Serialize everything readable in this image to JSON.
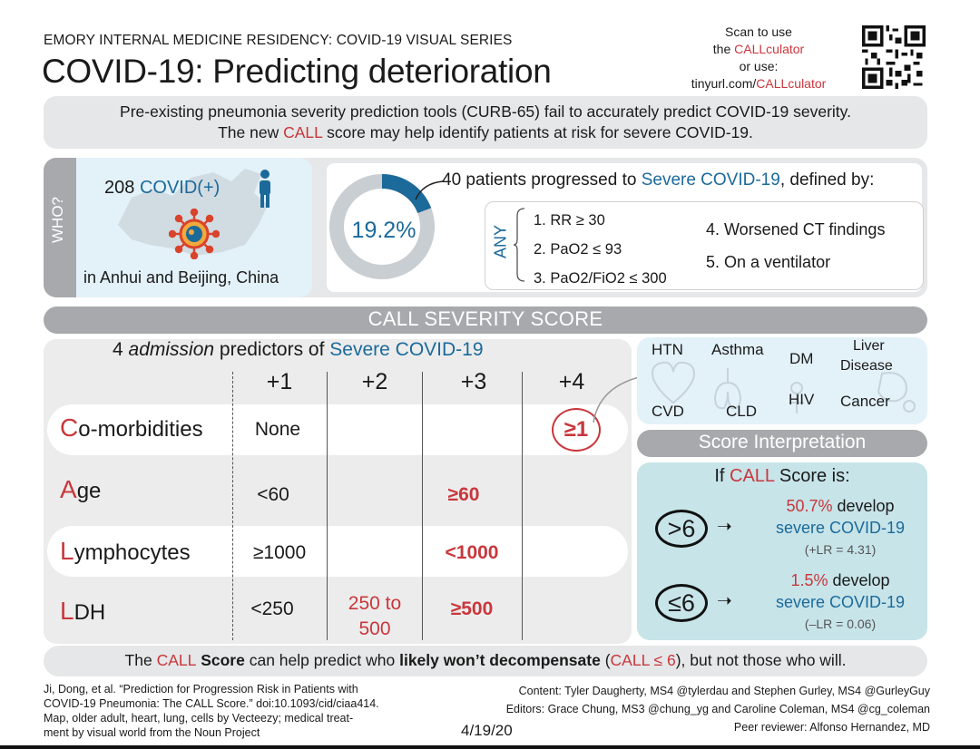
{
  "header": {
    "series": "EMORY INTERNAL MEDICINE RESIDENCY: COVID-19 VISUAL SERIES",
    "title": "COVID-19: Predicting deterioration",
    "qr_line1": "Scan to use",
    "qr_line2_prefix": "the ",
    "qr_line2_accent": "CALLculator",
    "qr_line3": "or use:",
    "qr_line4_prefix": "tinyurl.com/",
    "qr_line4_accent": "CALLculator"
  },
  "intro": {
    "line1": "Pre-existing pneumonia severity prediction tools (CURB-65) fail to accurately predict COVID-19 severity.",
    "line2_prefix": "The new ",
    "line2_accent": "CALL",
    "line2_suffix": " score may help identify patients at risk for severe COVID-19."
  },
  "who": {
    "tab_label": "WHO?",
    "count": "208",
    "count_label": "COVID(+)",
    "place": "in Anhui and Beijing, China"
  },
  "severity": {
    "percent": "19.2%",
    "percent_value": 19.2,
    "head_prefix": "40 patients progressed to ",
    "head_accent": "Severe COVID-19",
    "head_suffix": ", defined by:",
    "any_label": "ANY",
    "criteria": [
      "1. RR ≥ 30",
      "2. PaO2 ≤ 93",
      "3. PaO2/FiO2 ≤ 300",
      "4. Worsened CT findings",
      "5. On a ventilator"
    ]
  },
  "call_band": "CALL SEVERITY SCORE",
  "score": {
    "head_prefix": "4 ",
    "head_italic": "admission",
    "head_mid": " predictors of ",
    "head_accent": "Severe COVID-19",
    "points": [
      "+1",
      "+2",
      "+3",
      "+4"
    ],
    "rows": [
      {
        "initial": "C",
        "rest": "o-morbidities",
        "c1": "None",
        "c2": "",
        "c3": "",
        "c4": "≥1"
      },
      {
        "initial": "A",
        "rest": "ge",
        "c1": "<60",
        "c2": "",
        "c3": "≥60",
        "c4": ""
      },
      {
        "initial": "L",
        "rest": "ymphocytes",
        "c1": "≥1000",
        "c2": "",
        "c3": "<1000",
        "c4": ""
      },
      {
        "initial": "L",
        "rest": "DH",
        "c1": "<250",
        "c2a": "250 to",
        "c2b": "500",
        "c3": "≥500",
        "c4": ""
      }
    ]
  },
  "comorbidities": [
    "HTN",
    "Asthma",
    "DM",
    "Liver",
    "Disease",
    "CVD",
    "CLD",
    "HIV",
    "Cancer"
  ],
  "interpretation": {
    "band": "Score Interpretation",
    "head_prefix": "If ",
    "head_accent": "CALL",
    "head_suffix": " Score is:",
    "high": {
      "symbol": ">6",
      "pct": "50.7%",
      "verb": " develop",
      "outcome": "severe COVID-19",
      "lr": "(+LR = 4.31)"
    },
    "low": {
      "symbol": "≤6",
      "pct": "1.5%",
      "verb": " develop",
      "outcome": "severe COVID-19",
      "lr": "(–LR = 0.06)"
    }
  },
  "footer": {
    "p1": "The ",
    "call": "CALL",
    "p2": " Score",
    "p3": " can help predict who ",
    "p4": "likely won’t decompensate",
    "p5": " (",
    "p6": "CALL ≤ 6",
    "p7": "), but not those who will."
  },
  "citation": [
    "Ji, Dong, et al. “Prediction for Progression Risk in Patients with",
    "COVID-19 Pneumonia: The CALL Score.” doi:10.1093/cid/ciaa414.",
    "Map, older adult, heart, lung, cells by Vecteezy; medical treat-",
    "ment by visual world from the Noun Project"
  ],
  "credits": [
    "Content: Tyler Daugherty, MS4 @tylerdau and  Stephen Gurley, MS4 @GurleyGuy",
    "Editors: Grace Chung, MS3 @chung_yg and Caroline Coleman, MS4 @cg_coleman",
    "Peer reviewer: Alfonso Hernandez, MD"
  ],
  "date": "4/19/20",
  "colors": {
    "accent_red": "#c8373c",
    "accent_blue": "#1b6a9a",
    "band_grey": "#a7a9ac",
    "light_blue": "#e3f1f9",
    "teal": "#c7e4e9"
  }
}
